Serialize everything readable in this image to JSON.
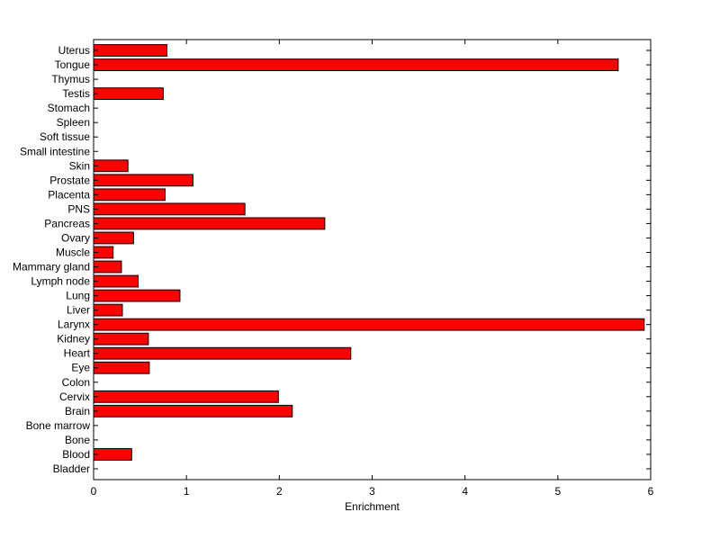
{
  "chart_data": {
    "type": "bar",
    "orientation": "horizontal",
    "title": "",
    "xlabel": "Enrichment",
    "ylabel": "",
    "xlim": [
      0,
      6
    ],
    "xticks": [
      0,
      1,
      2,
      3,
      4,
      5,
      6
    ],
    "grid": false,
    "bar_color": "#ff0000",
    "categories": [
      "Uterus",
      "Tongue",
      "Thymus",
      "Testis",
      "Stomach",
      "Spleen",
      "Soft tissue",
      "Small intestine",
      "Skin",
      "Prostate",
      "Placenta",
      "PNS",
      "Pancreas",
      "Ovary",
      "Muscle",
      "Mammary gland",
      "Lymph node",
      "Lung",
      "Liver",
      "Larynx",
      "Kidney",
      "Heart",
      "Eye",
      "Colon",
      "Cervix",
      "Brain",
      "Bone marrow",
      "Bone",
      "Blood",
      "Bladder"
    ],
    "values": [
      0.79,
      5.65,
      0,
      0.75,
      0,
      0,
      0,
      0,
      0.37,
      1.07,
      0.77,
      1.63,
      2.49,
      0.43,
      0.21,
      0.3,
      0.48,
      0.93,
      0.31,
      5.93,
      0.59,
      2.77,
      0.6,
      0,
      1.99,
      2.14,
      0,
      0,
      0.41,
      0
    ]
  }
}
